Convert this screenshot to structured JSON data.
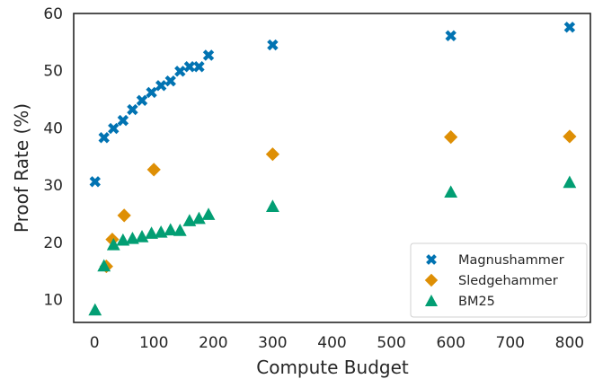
{
  "chart_data": {
    "type": "scatter",
    "xlabel": "Compute Budget",
    "ylabel": "Proof Rate (%)",
    "xlim": [
      -35,
      835
    ],
    "ylim": [
      6,
      60
    ],
    "xticks": [
      0,
      100,
      200,
      300,
      400,
      500,
      600,
      700,
      800
    ],
    "yticks": [
      10,
      20,
      30,
      40,
      50,
      60
    ],
    "grid": false,
    "legend": "bottom-right",
    "series": [
      {
        "name": "Magnushammer",
        "marker": "x",
        "color": "#0173b2",
        "points": [
          [
            1,
            30.6
          ],
          [
            16,
            38.3
          ],
          [
            32,
            39.9
          ],
          [
            48,
            41.3
          ],
          [
            64,
            43.2
          ],
          [
            80,
            44.8
          ],
          [
            96,
            46.2
          ],
          [
            112,
            47.4
          ],
          [
            128,
            48.2
          ],
          [
            144,
            49.9
          ],
          [
            160,
            50.7
          ],
          [
            176,
            50.7
          ],
          [
            192,
            52.7
          ],
          [
            300,
            54.5
          ],
          [
            600,
            56.1
          ],
          [
            800,
            57.6
          ]
        ]
      },
      {
        "name": "Sledgehammer",
        "marker": "diamond",
        "color": "#de8f05",
        "points": [
          [
            20,
            15.8
          ],
          [
            30,
            20.5
          ],
          [
            50,
            24.7
          ],
          [
            100,
            32.7
          ],
          [
            300,
            35.4
          ],
          [
            600,
            38.4
          ],
          [
            800,
            38.5
          ]
        ]
      },
      {
        "name": "BM25",
        "marker": "triangle",
        "color": "#029e73",
        "points": [
          [
            1,
            8.2
          ],
          [
            16,
            15.9
          ],
          [
            32,
            19.6
          ],
          [
            48,
            20.4
          ],
          [
            64,
            20.7
          ],
          [
            80,
            21.0
          ],
          [
            96,
            21.6
          ],
          [
            112,
            21.8
          ],
          [
            128,
            22.2
          ],
          [
            144,
            22.1
          ],
          [
            160,
            23.8
          ],
          [
            176,
            24.2
          ],
          [
            192,
            24.9
          ],
          [
            300,
            26.3
          ],
          [
            600,
            28.8
          ],
          [
            800,
            30.5
          ]
        ]
      }
    ]
  }
}
